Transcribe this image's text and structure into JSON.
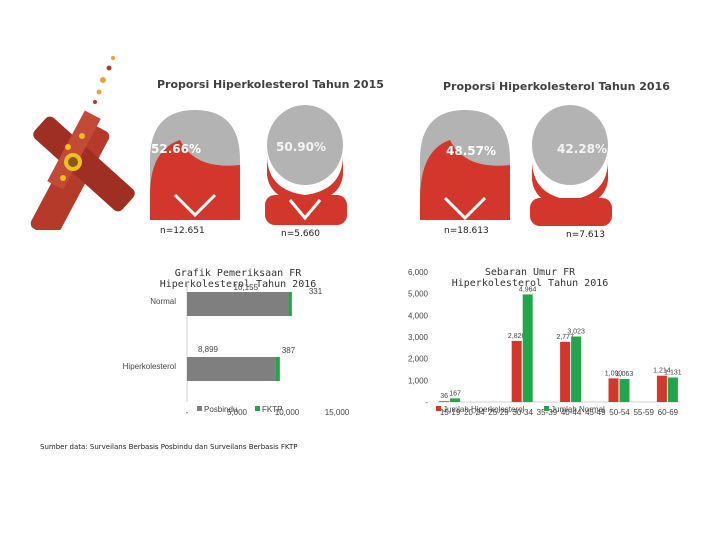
{
  "colors": {
    "red": "#d3372b",
    "gray_head": "#b3b3b3",
    "dark_gray": "#555555",
    "bar_gray": "#7f7f7f",
    "green": "#22a64a",
    "cigarette": "#b53a2a"
  },
  "top": {
    "left": {
      "title": "Proporsi Hiperkolesterol Tahun 2015",
      "female_pct": "52.66%",
      "male_pct": "50.90%",
      "female_n": "n=12.651",
      "male_n": "n=5.660"
    },
    "right": {
      "title": "Proporsi Hiperkolesterol Tahun 2016",
      "female_pct": "48.57%",
      "male_pct": "42.28%",
      "female_n": "n=18.613",
      "male_n": "n=7.613"
    }
  },
  "chart_data": [
    {
      "type": "bar",
      "orientation": "horizontal",
      "stacked": true,
      "title": "Grafik Pemeriksaan FR Hiperkolesterol Tahun 2016",
      "categories": [
        "Normal",
        "Hiperkolesterol"
      ],
      "series": [
        {
          "name": "Posbindu",
          "values": [
            10155,
            8899
          ],
          "labels": [
            "10,155",
            "8,899"
          ]
        },
        {
          "name": "FKTP",
          "values": [
            331,
            387
          ],
          "labels": [
            "331",
            "387"
          ]
        }
      ],
      "x_ticks": [
        "-",
        "5,000",
        "10,000",
        "15,000"
      ],
      "xlim": [
        0,
        15000
      ],
      "legend": "bottom"
    },
    {
      "type": "bar",
      "title": "Sebaran Umur FR Hiperkolesterol Tahun 2016",
      "categories": [
        "15-19",
        "20-24",
        "25-29",
        "30-34",
        "35-39",
        "40-44",
        "45-49",
        "50-54",
        "55-59",
        "60-69"
      ],
      "series": [
        {
          "name": "Jumlah Hiperkolesterol",
          "values": [
            36,
            null,
            null,
            2820,
            null,
            2777,
            null,
            1090,
            null,
            1214
          ]
        },
        {
          "name": "Jumlah Normal",
          "values": [
            167,
            null,
            null,
            4964,
            null,
            3023,
            null,
            1063,
            null,
            1131
          ]
        }
      ],
      "value_labels": [
        "36",
        "167",
        "2,820",
        "4,964",
        "2,777",
        "3,023",
        "1,090",
        "1,063",
        "1,214",
        "1,131"
      ],
      "y_ticks": [
        "-",
        "1,000",
        "2,000",
        "3,000",
        "4,000",
        "5,000",
        "6,000"
      ],
      "ylim": [
        0,
        6000
      ],
      "legend": "bottom"
    }
  ],
  "source": "Sumber data: Surveilans Berbasis Posbindu dan Surveilans Berbasis FKTP"
}
